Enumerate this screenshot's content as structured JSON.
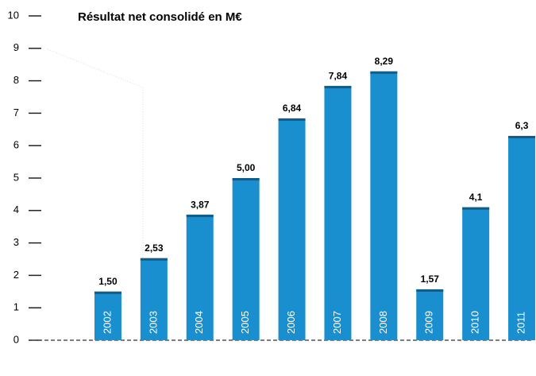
{
  "chart_data": {
    "type": "bar",
    "title": "Résultat net consolidé en M€",
    "categories": [
      "2002",
      "2003",
      "2004",
      "2005",
      "2006",
      "2007",
      "2008",
      "2009",
      "2010",
      "2011"
    ],
    "values": [
      1.5,
      2.53,
      3.87,
      5.0,
      6.84,
      7.84,
      8.29,
      1.57,
      4.1,
      6.3
    ],
    "value_labels": [
      "1,50",
      "2,53",
      "3,87",
      "5,00",
      "6,84",
      "7,84",
      "8,29",
      "1,57",
      "4,1",
      "6,3"
    ],
    "color": "#1a8fcf",
    "ylim": [
      0,
      10
    ],
    "yticks": [
      0,
      1,
      2,
      3,
      4,
      5,
      6,
      7,
      8,
      9,
      10
    ]
  }
}
